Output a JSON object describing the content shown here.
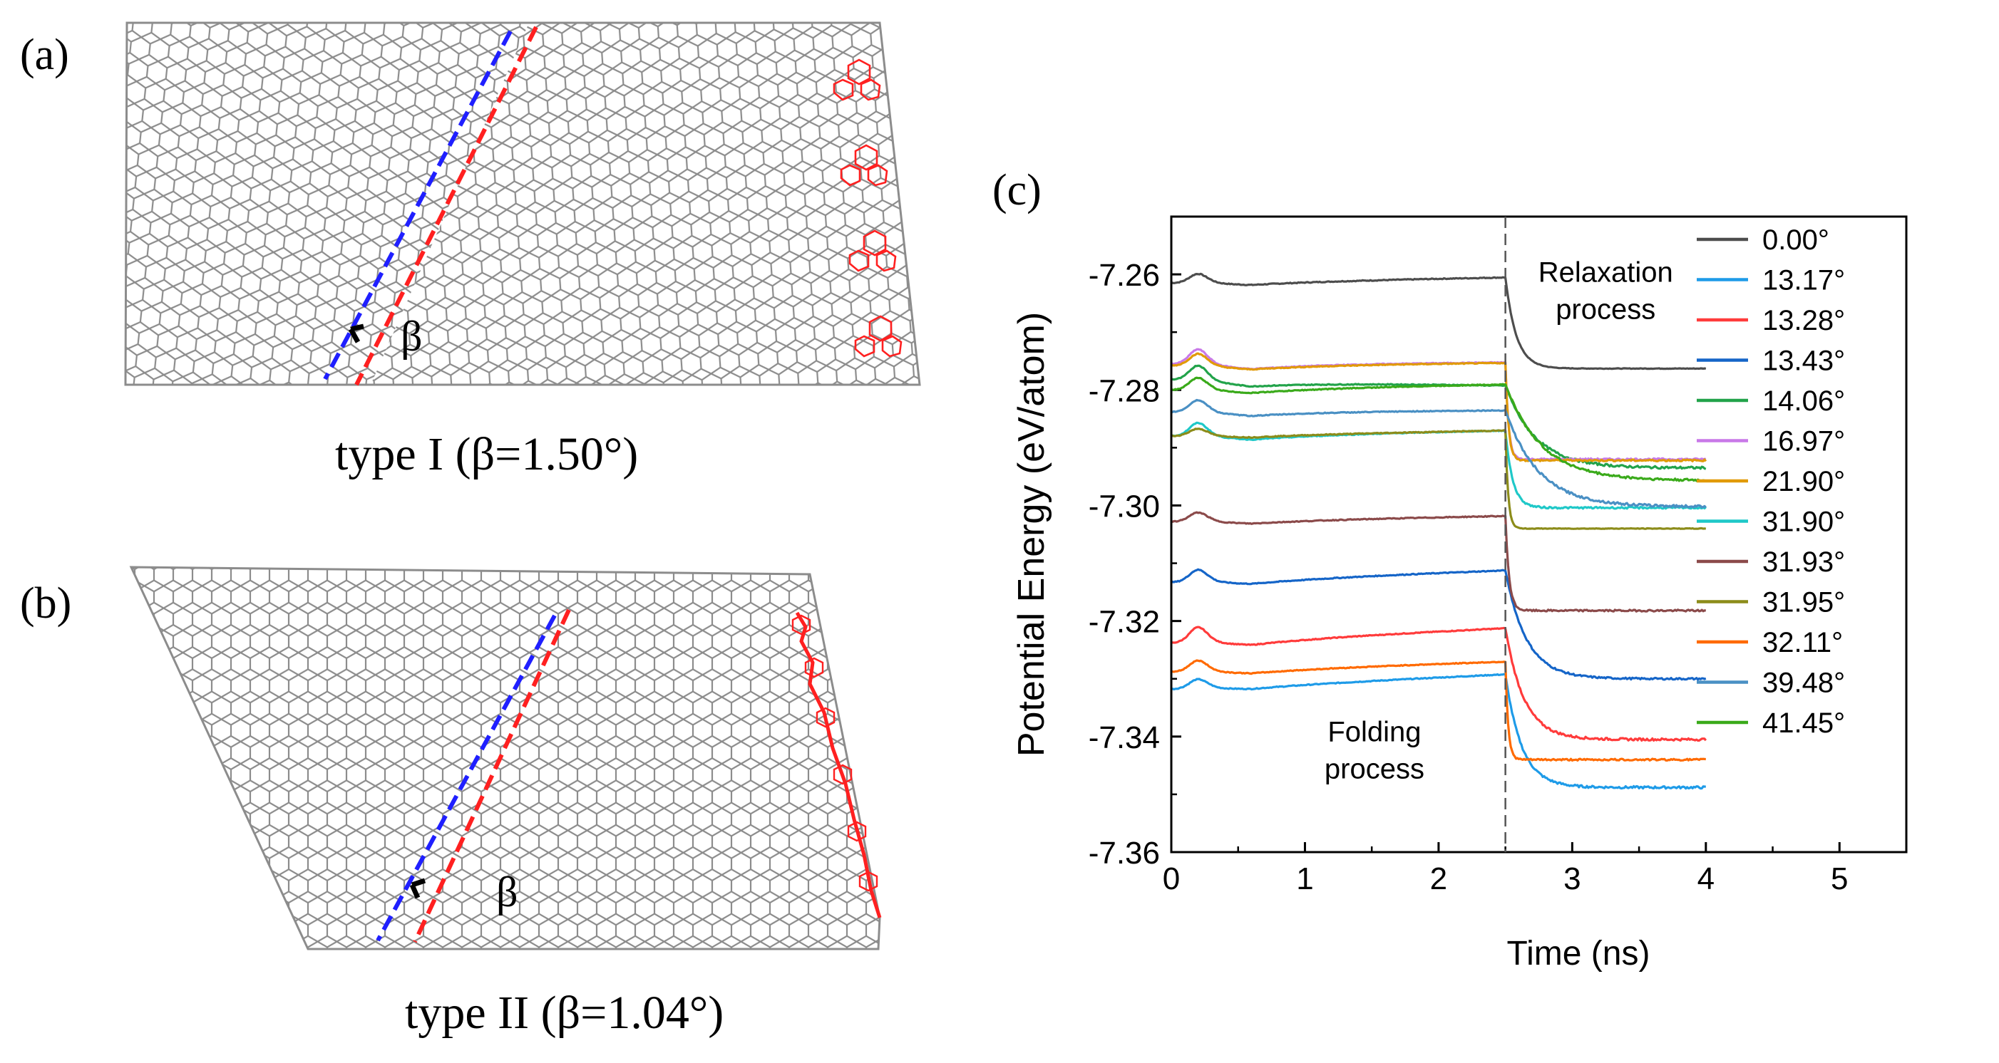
{
  "panel_a": {
    "label": "(a)",
    "angle_symbol": "β",
    "caption": "type I (β=1.50°)",
    "dash_colors": [
      "#1f1fff",
      "#ff2020"
    ],
    "lattice_color": "#8c8c8c",
    "defect_color": "#ff2020"
  },
  "panel_b": {
    "label": "(b)",
    "angle_symbol": "β",
    "caption": "type II (β=1.04°)"
  },
  "panel_c": {
    "label": "(c)"
  },
  "chart_data": {
    "type": "line",
    "ylabel": "Potential  Energy (eV/atom)",
    "xlabel": "Time (ns)",
    "xlim": [
      0,
      5.5
    ],
    "ylim": [
      -7.36,
      -7.25
    ],
    "x_ticks": [
      0,
      1,
      2,
      3,
      4,
      5
    ],
    "y_ticks": [
      -7.26,
      -7.28,
      -7.3,
      -7.32,
      -7.34,
      -7.36
    ],
    "x_tick_labels": [
      "0",
      "1",
      "2",
      "3",
      "4",
      "5"
    ],
    "y_tick_labels": [
      "-7.26",
      "-7.28",
      "-7.30",
      "-7.32",
      "-7.34",
      "-7.36"
    ],
    "vline_x": 2.5,
    "annotations": [
      {
        "lines": [
          "Relaxation",
          "process"
        ],
        "x": 3.25,
        "y": -7.2613
      },
      {
        "lines": [
          "Folding",
          "process"
        ],
        "x": 1.52,
        "y": -7.3408
      }
    ],
    "legend_position": "upper-right",
    "series": [
      {
        "name": "0.00°",
        "color": "#4d4d4d",
        "start": -7.2615,
        "bump": 0.0015,
        "fold_end": -7.2605,
        "final": -7.2763,
        "relax_time": 0.18,
        "noise": 0.0001
      },
      {
        "name": "13.17°",
        "color": "#1e9be8",
        "start": -7.3318,
        "bump": 0.0015,
        "fold_end": -7.3292,
        "final": -7.3488,
        "relax_time": 0.27,
        "noise": 0.0004
      },
      {
        "name": "13.28°",
        "color": "#ff3b3b",
        "start": -7.3238,
        "bump": 0.0025,
        "fold_end": -7.3212,
        "final": -7.3405,
        "relax_time": 0.31,
        "noise": 0.0004
      },
      {
        "name": "13.43°",
        "color": "#1565c8",
        "start": -7.3133,
        "bump": 0.002,
        "fold_end": -7.3112,
        "final": -7.33,
        "relax_time": 0.35,
        "noise": 0.0003
      },
      {
        "name": "14.06°",
        "color": "#22a34a",
        "start": -7.2782,
        "bump": 0.0025,
        "fold_end": -7.2792,
        "final": -7.2935,
        "relax_time": 0.5,
        "noise": 0.0004
      },
      {
        "name": "16.97°",
        "color": "#c879e8",
        "start": -7.2755,
        "bump": 0.0025,
        "fold_end": -7.2752,
        "final": -7.292,
        "relax_time": 0.05,
        "noise": 0.0003
      },
      {
        "name": "21.90°",
        "color": "#e19a06",
        "start": -7.2758,
        "bump": 0.002,
        "fold_end": -7.2753,
        "final": -7.2922,
        "relax_time": 0.05,
        "noise": 0.0003
      },
      {
        "name": "31.90°",
        "color": "#1fc8c8",
        "start": -7.288,
        "bump": 0.0022,
        "fold_end": -7.287,
        "final": -7.3004,
        "relax_time": 0.12,
        "noise": 0.0003
      },
      {
        "name": "31.93°",
        "color": "#8b4a4a",
        "start": -7.3028,
        "bump": 0.0015,
        "fold_end": -7.3018,
        "final": -7.3182,
        "relax_time": 0.06,
        "noise": 0.0003
      },
      {
        "name": "31.95°",
        "color": "#8c8c1a",
        "start": -7.288,
        "bump": 0.0012,
        "fold_end": -7.287,
        "final": -7.304,
        "relax_time": 0.02,
        "noise": 0.0001
      },
      {
        "name": "32.11°",
        "color": "#ff6a00",
        "start": -7.3288,
        "bump": 0.0018,
        "fold_end": -7.327,
        "final": -7.344,
        "relax_time": 0.04,
        "noise": 0.0003
      },
      {
        "name": "39.48°",
        "color": "#4a90c4",
        "start": -7.2838,
        "bump": 0.002,
        "fold_end": -7.2835,
        "final": -7.3002,
        "relax_time": 0.55,
        "noise": 0.0004
      },
      {
        "name": "41.45°",
        "color": "#3aaa1a",
        "start": -7.28,
        "bump": 0.002,
        "fold_end": -7.279,
        "final": -7.2957,
        "relax_time": 0.6,
        "noise": 0.0004
      }
    ]
  }
}
